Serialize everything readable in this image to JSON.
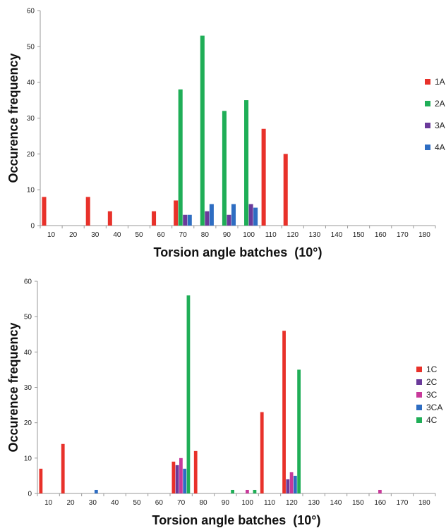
{
  "chart_data": [
    {
      "type": "bar",
      "xlabel": "Torsion angle batches  (10°)",
      "ylabel": "Occurence frequency",
      "ylim": [
        0,
        60
      ],
      "yticks": [
        0,
        10,
        20,
        30,
        40,
        50,
        60
      ],
      "categories": [
        "10",
        "20",
        "30",
        "40",
        "50",
        "60",
        "70",
        "80",
        "90",
        "100",
        "110",
        "120",
        "130",
        "140",
        "150",
        "160",
        "170",
        "180"
      ],
      "legend_position": "right",
      "series": [
        {
          "name": "1A",
          "color": "#e8312a",
          "values": [
            8,
            0,
            8,
            4,
            0,
            4,
            7,
            0,
            0,
            0,
            27,
            20,
            0,
            0,
            0,
            0,
            0,
            0
          ]
        },
        {
          "name": "2A",
          "color": "#1fae57",
          "values": [
            0,
            0,
            0,
            0,
            0,
            0,
            38,
            53,
            32,
            35,
            0,
            0,
            0,
            0,
            0,
            0,
            0,
            0
          ]
        },
        {
          "name": "3A",
          "color": "#6a3a9a",
          "values": [
            0,
            0,
            0,
            0,
            0,
            0,
            3,
            4,
            3,
            6,
            0,
            0,
            0,
            0,
            0,
            0,
            0,
            0
          ]
        },
        {
          "name": "4A",
          "color": "#2e6dc2",
          "values": [
            0,
            0,
            0,
            0,
            0,
            0,
            3,
            6,
            6,
            5,
            0,
            0,
            0,
            0,
            0,
            0,
            0,
            0
          ]
        }
      ]
    },
    {
      "type": "bar",
      "xlabel": "Torsion angle batches  (10°)",
      "ylabel": "Occurence frequency",
      "ylim": [
        0,
        60
      ],
      "yticks": [
        0,
        10,
        20,
        30,
        40,
        50,
        60
      ],
      "categories": [
        "10",
        "20",
        "30",
        "40",
        "50",
        "60",
        "70",
        "80",
        "90",
        "100",
        "110",
        "120",
        "130",
        "140",
        "150",
        "160",
        "170",
        "180"
      ],
      "legend_position": "right",
      "series": [
        {
          "name": "1C",
          "color": "#e8312a",
          "values": [
            7,
            14,
            0,
            0,
            0,
            0,
            9,
            12,
            0,
            0,
            23,
            46,
            0,
            0,
            0,
            0,
            0,
            0
          ]
        },
        {
          "name": "2C",
          "color": "#6a3a9a",
          "values": [
            0,
            0,
            0,
            0,
            0,
            0,
            8,
            0,
            0,
            0,
            0,
            4,
            0,
            0,
            0,
            0,
            0,
            0
          ]
        },
        {
          "name": "3C",
          "color": "#c8399a",
          "values": [
            0,
            0,
            0,
            0,
            0,
            0,
            10,
            0,
            0,
            1,
            0,
            6,
            0,
            0,
            0,
            1,
            0,
            0
          ]
        },
        {
          "name": "3CA",
          "color": "#2e6dc2",
          "values": [
            0,
            0,
            1,
            0,
            0,
            0,
            7,
            0,
            0,
            0,
            0,
            5,
            0,
            0,
            0,
            0,
            0,
            0
          ]
        },
        {
          "name": "4C",
          "color": "#1fae57",
          "values": [
            0,
            0,
            0,
            0,
            0,
            0,
            56,
            0,
            1,
            1,
            0,
            35,
            0,
            0,
            0,
            0,
            0,
            0
          ]
        }
      ]
    }
  ]
}
